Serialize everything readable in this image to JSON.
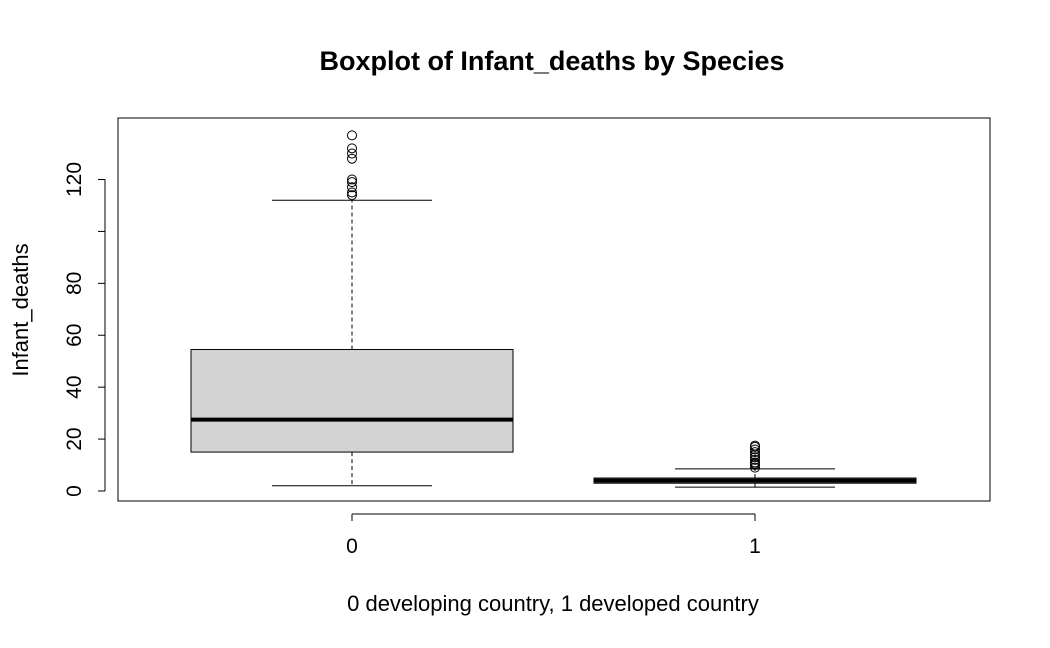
{
  "chart_data": {
    "type": "box",
    "title": "Boxplot of Infant_deaths by Species",
    "xlabel": "0 developing country, 1 developed country",
    "ylabel": "Infant_deaths",
    "categories": [
      "0",
      "1"
    ],
    "yticks": [
      0,
      20,
      40,
      60,
      80,
      100,
      120
    ],
    "ytick_labels": [
      "0",
      "20",
      "40",
      "60",
      "80",
      "",
      "120"
    ],
    "ylim": [
      -3,
      140
    ],
    "box_fill": "#d3d3d3",
    "boxes": [
      {
        "category": "0",
        "whisker_low": 2,
        "q1": 15,
        "median": 27.5,
        "q3": 54.5,
        "whisker_high": 112,
        "outliers": [
          114,
          115,
          117,
          119,
          120,
          128,
          130,
          132,
          137
        ]
      },
      {
        "category": "1",
        "whisker_low": 1.5,
        "q1": 3,
        "median": 4,
        "q3": 5,
        "whisker_high": 8.5,
        "outliers": [
          9,
          10,
          10.5,
          11,
          12,
          13,
          14,
          15,
          16,
          17,
          17.5
        ]
      }
    ]
  }
}
